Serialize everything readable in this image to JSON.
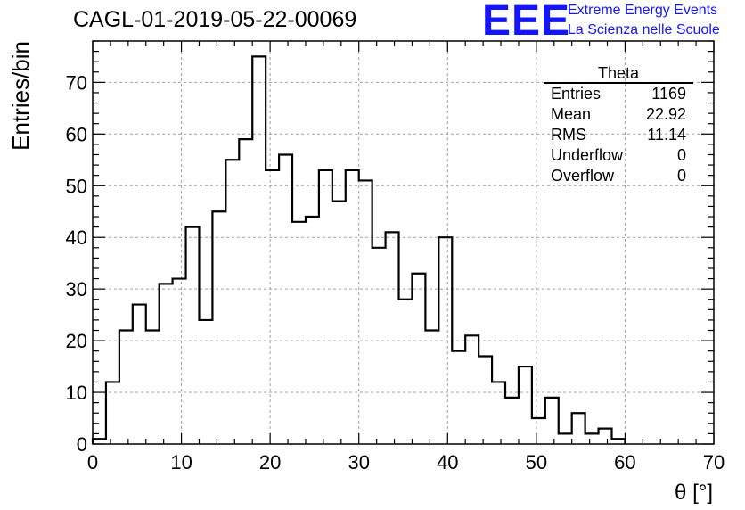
{
  "header": {
    "run_title": "CAGL-01-2019-05-22-00069"
  },
  "logo": {
    "mark": "EEE",
    "line1": "Extreme Energy Events",
    "line2": "La Scienza nelle Scuole",
    "color": "#1414ff"
  },
  "stats_box": {
    "title": "Theta",
    "rows": [
      {
        "label": "Entries",
        "value": "1169"
      },
      {
        "label": "Mean",
        "value": "22.92"
      },
      {
        "label": "RMS",
        "value": "11.14"
      },
      {
        "label": "Underflow",
        "value": "0"
      },
      {
        "label": "Overflow",
        "value": "0"
      }
    ]
  },
  "chart_data": {
    "type": "bar",
    "style": "step-histogram",
    "bin_width": 1.5,
    "x_start": 0,
    "values": [
      1,
      12,
      22,
      27,
      22,
      31,
      32,
      42,
      24,
      45,
      55,
      59,
      75,
      53,
      56,
      43,
      44,
      53,
      47,
      53,
      51,
      38,
      41,
      28,
      33,
      22,
      40,
      18,
      21,
      17,
      12,
      9,
      15,
      5,
      9,
      2,
      6,
      2,
      3,
      1
    ],
    "xlabel": "θ [°]",
    "ylabel": "Entries/bin",
    "xlim": [
      0,
      70
    ],
    "ylim": [
      0,
      78
    ],
    "x_ticks": [
      0,
      10,
      20,
      30,
      40,
      50,
      60,
      70
    ],
    "y_ticks": [
      0,
      10,
      20,
      30,
      40,
      50,
      60,
      70
    ],
    "grid": true
  }
}
